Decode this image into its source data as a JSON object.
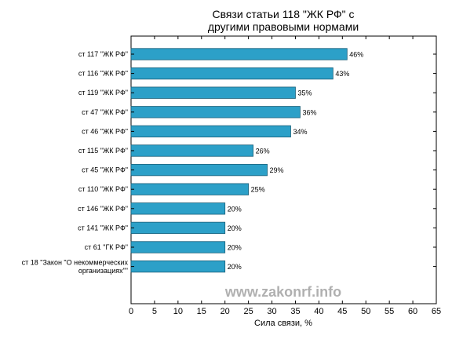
{
  "chart_data": {
    "type": "bar",
    "orientation": "horizontal",
    "title": [
      "Связи статьи 118 \"ЖК РФ\" с",
      "другими правовыми нормами"
    ],
    "xlabel": "Сила связи, %",
    "xlim": [
      0,
      65
    ],
    "xticks": [
      "0",
      "5",
      "10",
      "15",
      "20",
      "25",
      "30",
      "35",
      "40",
      "45",
      "50",
      "55",
      "60",
      "65"
    ],
    "categories": [
      [
        "ст 117 \"ЖК РФ\""
      ],
      [
        "ст 116 \"ЖК РФ\""
      ],
      [
        "ст 119 \"ЖК РФ\""
      ],
      [
        "ст 47 \"ЖК РФ\""
      ],
      [
        "ст 46 \"ЖК РФ\""
      ],
      [
        "ст 115 \"ЖК РФ\""
      ],
      [
        "ст 45 \"ЖК РФ\""
      ],
      [
        "ст 110 \"ЖК РФ\""
      ],
      [
        "ст 146 \"ЖК РФ\""
      ],
      [
        "ст 141 \"ЖК РФ\""
      ],
      [
        "ст 61 \"ГК РФ\""
      ],
      [
        "ст 18 \"Закон \"О некоммерческих",
        "организациях\"\""
      ]
    ],
    "values": [
      46,
      43,
      35,
      36,
      34,
      26,
      29,
      25,
      20,
      20,
      20,
      20
    ],
    "data_labels": [
      "46%",
      "43%",
      "35%",
      "36%",
      "34%",
      "26%",
      "29%",
      "25%",
      "20%",
      "20%",
      "20%",
      "20%"
    ],
    "bar_color": "#2ca0c8",
    "grid": false,
    "watermark": "www.zakonrf.info"
  }
}
